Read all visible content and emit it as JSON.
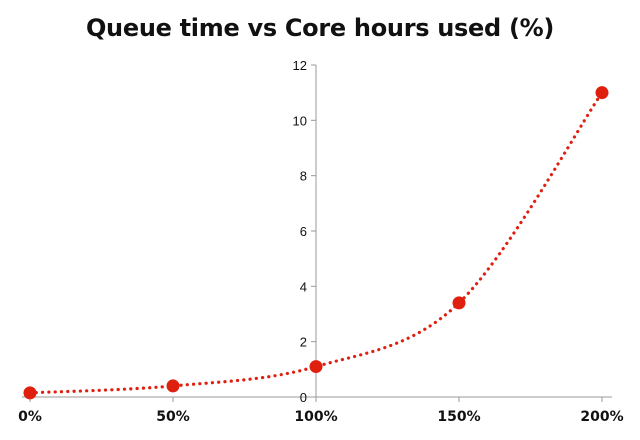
{
  "chart_data": {
    "type": "line",
    "title": "Queue time vs Core hours used (%)",
    "xlabel": "",
    "ylabel": "",
    "x_categories": [
      "0%",
      "50%",
      "100%",
      "150%",
      "200%"
    ],
    "x_values": [
      0,
      50,
      100,
      150,
      200
    ],
    "xlim": [
      0,
      200
    ],
    "ylim": [
      0,
      12
    ],
    "y_ticks": [
      0,
      2,
      4,
      6,
      8,
      10,
      12
    ],
    "series": [
      {
        "values": [
          0.15,
          0.4,
          1.1,
          3.4,
          11.0
        ],
        "color": "#e0200f",
        "line_style": "dotted",
        "smooth": true
      }
    ],
    "grid": false,
    "legend": "none"
  }
}
